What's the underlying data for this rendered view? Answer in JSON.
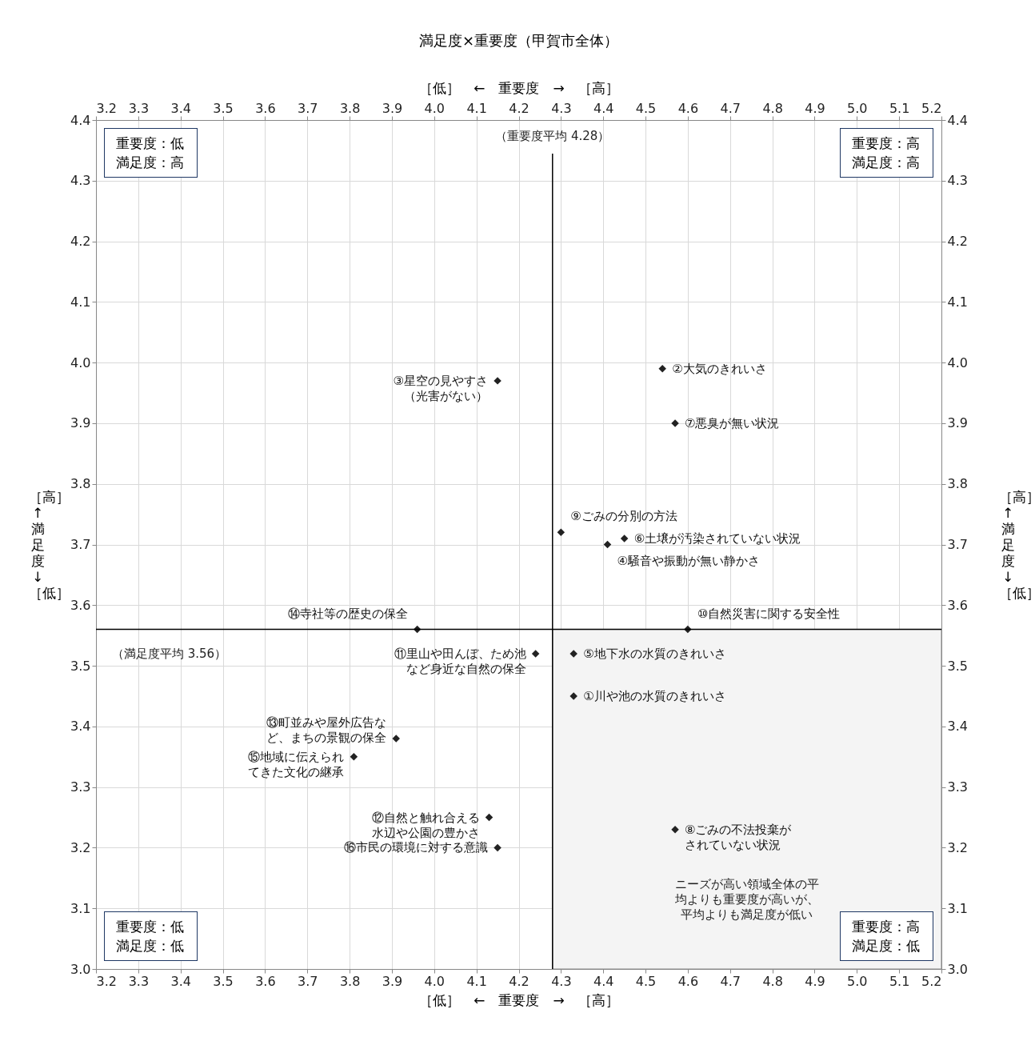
{
  "chart_data": {
    "type": "scatter",
    "title": "満足度×重要度（甲賀市全体）",
    "xlabel": "［低］　←　重要度　→　［高］",
    "x2label": "［低］　←　重要度　→　［高］",
    "ylabel": "［高］　↑　満足度　↓　［低］",
    "y2label": "［高］　↑　満足度　↓　［低］",
    "x": [
      4.33,
      4.54,
      4.15,
      4.41,
      4.33,
      4.45,
      4.57,
      4.57,
      4.3,
      4.6,
      4.24,
      4.13,
      3.91,
      3.96,
      3.81,
      4.15
    ],
    "values": [
      3.45,
      3.99,
      3.97,
      3.7,
      3.52,
      3.71,
      3.9,
      3.23,
      3.72,
      3.56,
      3.52,
      3.25,
      3.38,
      3.56,
      3.35,
      3.2
    ],
    "value_labels": [
      "①川や池の水質のきれいさ",
      "②大気のきれいさ",
      "③星空の見やすさ（光害がない）",
      "④騒音や振動が無い静かさ",
      "⑤地下水の水質のきれいさ",
      "⑥土壌が汚染されていない状況",
      "⑦悪臭が無い状況",
      "⑧ごみの不法投棄がされていない状況",
      "⑨ごみの分別の方法",
      "⑩自然災害に関する安全性",
      "⑪里山や田んぼ、ため池など身近な自然の保全",
      "⑫自然と触れ合える水辺や公園の豊かさ",
      "⑬町並みや屋外広告など、まちの景観の保全",
      "⑭寺社等の歴史の保全",
      "⑮地域に伝えられてきた文化の継承",
      "⑯市民の環境に対する意識"
    ],
    "color": "#222222",
    "marker": "diamond",
    "grid": true,
    "xlim": [
      3.2,
      5.2
    ],
    "x2lim": [
      3.2,
      5.2
    ],
    "ylim": [
      3.0,
      4.4
    ],
    "y2lim": [
      3.0,
      4.4
    ],
    "xticks": [
      3.2,
      3.3,
      3.4,
      3.5,
      3.6,
      3.7,
      3.8,
      3.9,
      {
        "value": 4,
        "label": "4.0"
      },
      4.1,
      4.2,
      4.3,
      4.4,
      4.5,
      4.6,
      4.7,
      4.8,
      4.9,
      {
        "value": 5,
        "label": "5.0"
      },
      5.1,
      5.2
    ],
    "x2ticks": [
      3.2,
      3.3,
      3.4,
      3.5,
      3.6,
      3.7,
      3.8,
      3.9,
      {
        "value": 4,
        "label": "4.0"
      },
      4.1,
      4.2,
      4.3,
      4.4,
      4.5,
      4.6,
      4.7,
      4.8,
      4.9,
      {
        "value": 5,
        "label": "5.0"
      },
      5.1,
      5.2
    ],
    "yticks": [
      {
        "value": 3,
        "label": "3.0"
      },
      3.1,
      3.2,
      3.3,
      3.4,
      3.5,
      3.6,
      3.7,
      3.8,
      3.9,
      {
        "value": 4,
        "label": "4.0"
      },
      4.1,
      4.2,
      4.3,
      4.4
    ],
    "y2ticks": [
      {
        "value": 3,
        "label": "3.0"
      },
      3.1,
      3.2,
      3.3,
      3.4,
      3.5,
      3.6,
      3.7,
      3.8,
      3.9,
      {
        "value": 4,
        "label": "4.0"
      },
      4.1,
      4.2,
      4.3,
      4.4
    ],
    "ref_lines": [
      {
        "axis": "x",
        "value": 4.28,
        "label": "（重要度平均 4.28）"
      },
      {
        "axis": "y",
        "value": 3.56,
        "label": "（満足度平均 3.56）"
      }
    ],
    "bands": [
      {
        "axis": "x",
        "from": 4.28,
        "to": 5.2,
        "color": "#f4f4f4",
        "label": "ニーズが高い領域全体の平均よりも重要度が高いが、平均よりも満足度が低い"
      }
    ],
    "annotations": [
      "重要度：低満足度：高",
      "重要度：高満足度：高",
      "重要度：低満足度：低",
      "重要度：高満足度：低"
    ]
  }
}
